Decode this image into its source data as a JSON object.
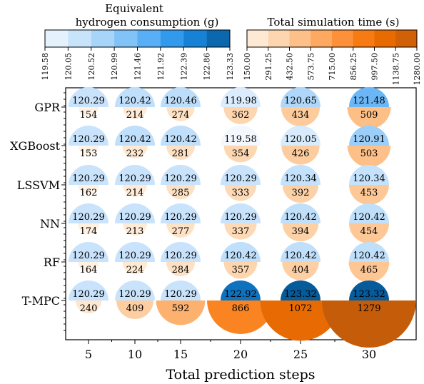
{
  "chart_data": {
    "type": "semicircle-bubble",
    "xlabel": "Total prediction steps",
    "ylabel": "",
    "x": [
      "5",
      "10",
      "15",
      "20",
      "25",
      "30"
    ],
    "methods": [
      "GPR",
      "XGBoost",
      "LSSVM",
      "NN",
      "RF",
      "T-MPC"
    ],
    "colorbar_h2": {
      "title": [
        "Equivalent",
        "hydrogen consumption (g)"
      ],
      "ticks": [
        "119.58",
        "120.05",
        "120.52",
        "120.99",
        "121.46",
        "121.92",
        "122.39",
        "122.86",
        "123.33"
      ],
      "range": [
        119.58,
        123.33
      ],
      "colors": [
        "#f2f8fe",
        "#d7ebfc",
        "#b9dcfa",
        "#95cbf8",
        "#6db8f6",
        "#45a5f3",
        "#1e8ee5",
        "#0f76c4",
        "#065a9a"
      ]
    },
    "colorbar_time": {
      "title": "Total simulation time (s)",
      "ticks": [
        "150.00",
        "291.25",
        "432.50",
        "573.75",
        "715.00",
        "856.25",
        "997.50",
        "1138.75",
        "1280.00"
      ],
      "range": [
        150,
        1280
      ],
      "colors": [
        "#fff3e6",
        "#fde0c2",
        "#fdcb9c",
        "#fdb474",
        "#fd9d4c",
        "#fb8425",
        "#f27100",
        "#dd6503",
        "#c45c0a"
      ]
    },
    "h2": {
      "GPR": [
        "120.29",
        "120.42",
        "120.46",
        "119.98",
        "120.65",
        "121.48"
      ],
      "XGBoost": [
        "120.29",
        "120.42",
        "120.42",
        "119.58",
        "120.05",
        "120.91"
      ],
      "LSSVM": [
        "120.29",
        "120.29",
        "120.29",
        "120.29",
        "120.34",
        "120.34"
      ],
      "NN": [
        "120.29",
        "120.29",
        "120.29",
        "120.29",
        "120.42",
        "120.42"
      ],
      "RF": [
        "120.29",
        "120.29",
        "120.29",
        "120.42",
        "120.42",
        "120.42"
      ],
      "T-MPC": [
        "120.29",
        "120.29",
        "120.29",
        "122.92",
        "123.32",
        "123.32"
      ]
    },
    "time": {
      "GPR": [
        "154",
        "214",
        "274",
        "362",
        "434",
        "509"
      ],
      "XGBoost": [
        "153",
        "232",
        "281",
        "354",
        "426",
        "503"
      ],
      "LSSVM": [
        "162",
        "214",
        "285",
        "333",
        "392",
        "453"
      ],
      "NN": [
        "174",
        "213",
        "277",
        "337",
        "394",
        "454"
      ],
      "RF": [
        "164",
        "224",
        "284",
        "357",
        "404",
        "465"
      ],
      "T-MPC": [
        "240",
        "409",
        "592",
        "866",
        "1072",
        "1279"
      ]
    }
  }
}
